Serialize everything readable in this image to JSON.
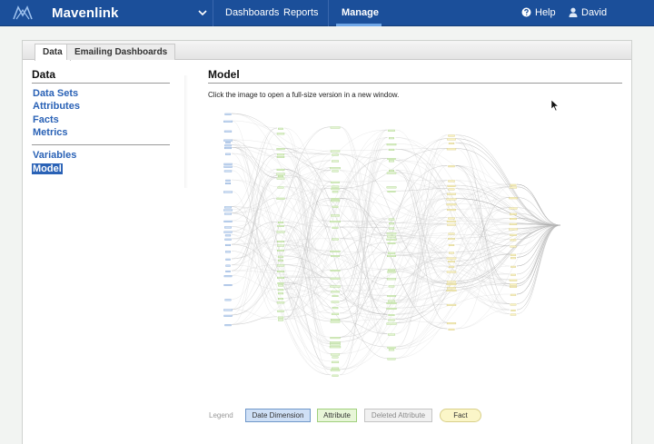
{
  "header": {
    "brand": "Mavenlink",
    "nav": [
      {
        "label": "Dashboards"
      },
      {
        "label": "Reports"
      }
    ],
    "active_nav": "Manage",
    "help_label": "Help",
    "user_label": "David"
  },
  "tabs": [
    {
      "label": "Data",
      "active": true
    },
    {
      "label": "Emailing Dashboards",
      "active": false
    }
  ],
  "sidebar": {
    "title": "Data",
    "group1": [
      "Data Sets",
      "Attributes",
      "Facts",
      "Metrics"
    ],
    "group2": [
      "Variables",
      "Model"
    ],
    "selected": "Model"
  },
  "main": {
    "title": "Model",
    "description": "Click the image to open a full-size version in a new window."
  },
  "legend": {
    "label": "Legend",
    "items": {
      "date_dimension": "Date Dimension",
      "attribute": "Attribute",
      "deleted_attribute": "Deleted Attribute",
      "fact": "Fact"
    }
  },
  "colors": {
    "topbar": "#1b4f9a",
    "link": "#2a62b6",
    "date_dimension": "#cfe0f6",
    "attribute": "#e8f6d8",
    "deleted_attribute": "#f1f1f1",
    "fact": "#fbf6c8"
  }
}
